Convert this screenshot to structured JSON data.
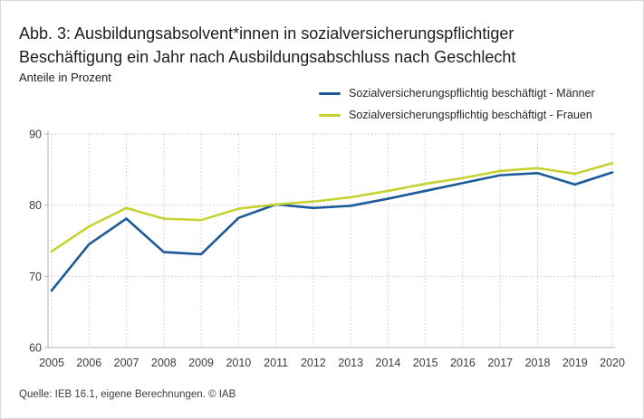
{
  "header": {
    "title_line1": "Abb. 3: Ausbildungsabsolvent*innen in sozialversicherungspflichtiger",
    "title_line2": "Beschäftigung ein Jahr nach Ausbildungsabschluss nach Geschlecht",
    "subtitle": "Anteile in Prozent"
  },
  "legend": [
    {
      "label": "Sozialversicherungspflichtig beschäftigt - Männer",
      "color": "#1b5a99"
    },
    {
      "label": "Sozialversicherungspflichtig beschäftigt - Frauen",
      "color": "#c6d32f"
    }
  ],
  "footer": {
    "source": "Quelle: IEB 16.1, eigene Berechnungen.  © IAB"
  },
  "chart_data": {
    "type": "line",
    "title": "Abb. 3: Ausbildungsabsolvent*innen in sozialversicherungspflichtiger Beschäftigung ein Jahr nach Ausbildungsabschluss nach Geschlecht",
    "ylabel": "Anteile in Prozent",
    "x": [
      "2005",
      "2006",
      "2007",
      "2008",
      "2009",
      "2010",
      "2011",
      "2012",
      "2013",
      "2014",
      "2015",
      "2016",
      "2017",
      "2018",
      "2019",
      "2020"
    ],
    "series": [
      {
        "name": "Sozialversicherungspflichtig beschäftigt - Männer",
        "color": "#1b5a99",
        "values": [
          68.0,
          74.5,
          78.1,
          73.4,
          73.1,
          78.2,
          80.1,
          79.6,
          79.9,
          80.9,
          82.0,
          83.1,
          84.2,
          84.5,
          82.9,
          84.6
        ]
      },
      {
        "name": "Sozialversicherungspflichtig beschäftigt - Frauen",
        "color": "#c6d32f",
        "values": [
          73.5,
          77.0,
          79.6,
          78.1,
          77.9,
          79.5,
          80.1,
          80.5,
          81.1,
          82.0,
          83.0,
          83.8,
          84.8,
          85.2,
          84.4,
          85.9
        ]
      }
    ],
    "ylim": [
      60,
      90
    ],
    "yticks": [
      60,
      70,
      80,
      90
    ],
    "grid": true,
    "legend_position": "top-right",
    "grid_color": "#bfbfbf",
    "axis_color": "#b0b0b0",
    "tick_label_color": "#3c3c3c"
  }
}
